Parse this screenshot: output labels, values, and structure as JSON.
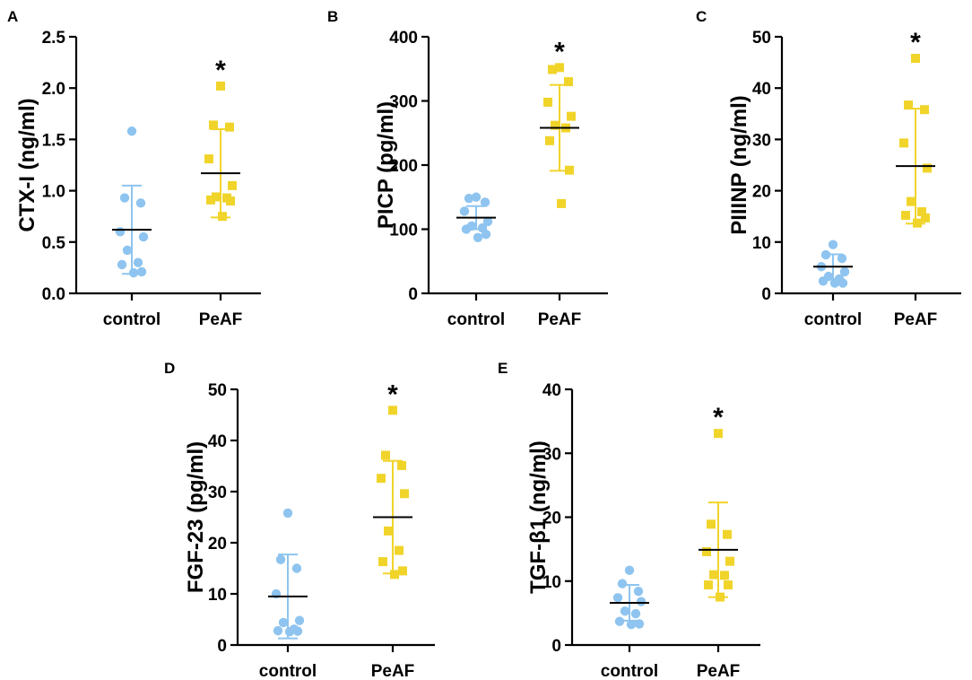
{
  "colors": {
    "control": "#8ec4ef",
    "peaf": "#f1d42a",
    "mean": "#000000"
  },
  "chart_data": [
    {
      "panel": "A",
      "type": "scatter",
      "ylabel": "CTX-I (ng/ml)",
      "categories": [
        "control",
        "PeAF"
      ],
      "ylim": [
        0,
        2.5
      ],
      "yticks": [
        "0.0",
        "0.5",
        "1.0",
        "1.5",
        "2.0",
        "2.5"
      ],
      "significance": "*",
      "series": [
        {
          "name": "control",
          "marker": "circle",
          "mean": 0.62,
          "sd": 0.43,
          "values": [
            1.58,
            0.93,
            0.88,
            0.6,
            0.55,
            0.42,
            0.3,
            0.28,
            0.21,
            0.2
          ]
        },
        {
          "name": "PeAF",
          "marker": "square",
          "mean": 1.17,
          "sd": 0.43,
          "values": [
            2.02,
            1.64,
            1.62,
            1.31,
            1.05,
            0.94,
            0.93,
            0.91,
            0.9,
            0.75
          ]
        }
      ]
    },
    {
      "panel": "B",
      "type": "scatter",
      "ylabel": "PICP (pg/ml)",
      "categories": [
        "control",
        "PeAF"
      ],
      "ylim": [
        0,
        400
      ],
      "yticks": [
        "0",
        "100",
        "200",
        "300",
        "400"
      ],
      "significance": "*",
      "series": [
        {
          "name": "control",
          "marker": "circle",
          "mean": 118,
          "sd": 18,
          "values": [
            150,
            148,
            142,
            128,
            112,
            105,
            102,
            100,
            92,
            87
          ]
        },
        {
          "name": "PeAF",
          "marker": "square",
          "mean": 258,
          "sd": 67,
          "values": [
            352,
            349,
            330,
            298,
            276,
            262,
            258,
            238,
            192,
            140
          ]
        }
      ]
    },
    {
      "panel": "C",
      "type": "scatter",
      "ylabel": "PIIINP (ng/ml)",
      "categories": [
        "control",
        "PeAF"
      ],
      "ylim": [
        0,
        50
      ],
      "yticks": [
        "0",
        "10",
        "20",
        "30",
        "40",
        "50"
      ],
      "significance": "*",
      "series": [
        {
          "name": "control",
          "marker": "circle",
          "mean": 5.2,
          "sd": 2.4,
          "values": [
            9.5,
            7.5,
            6.8,
            5.2,
            4.2,
            3.3,
            2.8,
            2.4,
            2.0,
            2.0
          ]
        },
        {
          "name": "PeAF",
          "marker": "square",
          "mean": 24.8,
          "sd": 11.2,
          "values": [
            45.8,
            36.7,
            35.8,
            29.3,
            24.4,
            17.9,
            15.9,
            15.2,
            14.7,
            13.7
          ]
        }
      ]
    },
    {
      "panel": "D",
      "type": "scatter",
      "ylabel": "FGF-23 (pg/ml)",
      "categories": [
        "control",
        "PeAF"
      ],
      "ylim": [
        0,
        50
      ],
      "yticks": [
        "0",
        "10",
        "20",
        "30",
        "40",
        "50"
      ],
      "significance": "*",
      "series": [
        {
          "name": "control",
          "marker": "circle",
          "mean": 9.5,
          "sd": 8.2,
          "values": [
            25.8,
            16.7,
            15.0,
            10.0,
            4.8,
            4.4,
            3.1,
            2.8,
            2.7,
            2.6
          ]
        },
        {
          "name": "PeAF",
          "marker": "square",
          "mean": 25.0,
          "sd": 11.0,
          "values": [
            45.9,
            37.1,
            35.1,
            32.6,
            29.6,
            22.3,
            18.5,
            16.3,
            14.5,
            13.8
          ]
        }
      ]
    },
    {
      "panel": "E",
      "type": "scatter",
      "ylabel": "TGF-β1  (ng/ml)",
      "categories": [
        "control",
        "PeAF"
      ],
      "ylim": [
        0,
        40
      ],
      "yticks": [
        "0",
        "10",
        "20",
        "30",
        "40"
      ],
      "significance": "*",
      "series": [
        {
          "name": "control",
          "marker": "circle",
          "mean": 6.6,
          "sd": 2.8,
          "values": [
            11.7,
            9.6,
            8.4,
            7.4,
            6.8,
            5.3,
            4.9,
            3.7,
            3.3,
            3.2
          ]
        },
        {
          "name": "PeAF",
          "marker": "square",
          "mean": 14.9,
          "sd": 7.4,
          "values": [
            33.1,
            18.9,
            17.3,
            14.6,
            13.1,
            11.0,
            10.9,
            9.4,
            9.4,
            7.5
          ]
        }
      ]
    }
  ]
}
